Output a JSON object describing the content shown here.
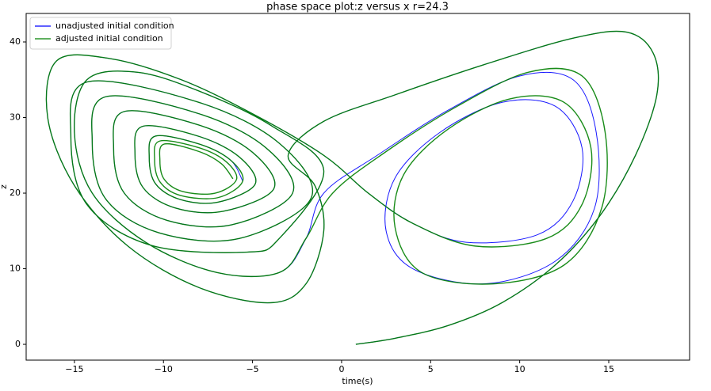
{
  "chart_data": {
    "type": "line",
    "title": "phase space plot:z versus x r=24.3",
    "xlabel": "time(s)",
    "ylabel": "z",
    "xlim": [
      -17.71,
      19.54
    ],
    "ylim": [
      -2.09,
      43.77
    ],
    "xticks": [
      {
        "value": -15,
        "label": "−15"
      },
      {
        "value": -10,
        "label": "−10"
      },
      {
        "value": -5,
        "label": "−5"
      },
      0,
      5,
      10,
      15
    ],
    "yticks": [
      0,
      10,
      20,
      30,
      40
    ],
    "grid": false,
    "legend": "upper left",
    "series": [
      {
        "name": "unadjusted initial condition",
        "color": "#0000ff",
        "x": [
          0.8,
          3,
          6,
          9,
          12,
          14.5,
          16.5,
          17.7,
          17.5,
          16,
          13,
          8,
          3,
          -1,
          -3,
          -1.5,
          -1,
          -2,
          -4,
          -8,
          -12,
          -15,
          -16.5,
          -16,
          -13,
          -9,
          -5,
          -1,
          1.5,
          4,
          7,
          11,
          13,
          13.5,
          12,
          9,
          5.5,
          3,
          2.5,
          4,
          8,
          12,
          14.2,
          14.3,
          13,
          10,
          6,
          2,
          -1,
          -2,
          -3.5,
          -7,
          -11,
          -14,
          -15,
          -14.3,
          -11.5,
          -8,
          -4,
          -1,
          -3.5,
          -5.3,
          -10.7,
          -14.3,
          -15.2,
          -14.3,
          -8,
          -3.5,
          -1.7,
          -5.75,
          -10.25,
          -13.25,
          -14,
          -13.25,
          -8,
          -4.25,
          -2.75,
          -6.2,
          -9.8,
          -12.2,
          -12.8,
          -12.2,
          -8,
          -5,
          -3.8,
          -6.65,
          -9.35,
          -11.15,
          -11.6,
          -11.15,
          -8,
          -5.75,
          -4.85,
          -6.95,
          -9.05,
          -10.45,
          -10.8,
          -10.45,
          -8,
          -6.25,
          -5.55
        ],
        "values": [
          0,
          0.8,
          2.5,
          5.5,
          10.5,
          17,
          25,
          33,
          38.5,
          41.3,
          40.5,
          37,
          33,
          29.5,
          25,
          21,
          15,
          8,
          5.5,
          7.5,
          13,
          21,
          30,
          37.5,
          37.8,
          35,
          30.5,
          25,
          20,
          16,
          13.5,
          14.5,
          19,
          26,
          31.5,
          32,
          28,
          22,
          15,
          10,
          8,
          11,
          18,
          28,
          35,
          35.5,
          31,
          25,
          20,
          14,
          9.5,
          9.5,
          13.5,
          20,
          28,
          35,
          36,
          33.5,
          29,
          23,
          14,
          12.2,
          13.1,
          18.5,
          27.5,
          34.7,
          32,
          26.6,
          19.4,
          14,
          14.75,
          19.25,
          26.75,
          32.75,
          30.5,
          26,
          20,
          15.8,
          16.4,
          20,
          26,
          30.8,
          29,
          25.4,
          20.6,
          17.6,
          18.05,
          20.75,
          25.25,
          28.85,
          27.5,
          24.8,
          21.2,
          18.8,
          19.15,
          21.25,
          24.75,
          27.55,
          26.5,
          24.4,
          21.6
        ]
      },
      {
        "name": "adjusted initial condition",
        "color": "#008000",
        "x": [
          0.8,
          3,
          6,
          9,
          12,
          14.5,
          16.5,
          17.7,
          17.5,
          16,
          13,
          8,
          3,
          -1,
          -3,
          -1.5,
          -1,
          -2,
          -4,
          -8,
          -12,
          -15,
          -16.5,
          -16,
          -13,
          -9,
          -5,
          -1,
          1.5,
          4,
          7.5,
          11.5,
          13.5,
          14,
          12.5,
          9.5,
          6,
          3.5,
          3,
          4.5,
          8.5,
          12.5,
          14.6,
          14.8,
          13.5,
          10.5,
          6.5,
          2.5,
          -0.5,
          -2,
          -3.5,
          -7,
          -11,
          -14,
          -15,
          -14.3,
          -11.5,
          -8,
          -4,
          -1,
          -3.5,
          -5.3,
          -10.7,
          -14.3,
          -15.2,
          -14.3,
          -8,
          -3.5,
          -1.7,
          -5.75,
          -10.25,
          -13.25,
          -14,
          -13.25,
          -8,
          -4.25,
          -2.75,
          -6.2,
          -9.8,
          -12.2,
          -12.8,
          -12.2,
          -8,
          -5,
          -3.8,
          -6.65,
          -9.35,
          -11.15,
          -11.6,
          -11.15,
          -8,
          -5.75,
          -4.85,
          -6.95,
          -9.05,
          -10.45,
          -10.8,
          -10.45,
          -8,
          -6.25,
          -5.55,
          -6.95,
          -9.05,
          -10.2,
          -10.5,
          -10.2,
          -8,
          -6.5,
          -5.9,
          -7.1,
          -8.9,
          -9.95,
          -10.2,
          -9.95,
          -8,
          -6.75,
          -6.1
        ],
        "values": [
          0,
          0.8,
          2.5,
          5.5,
          10.5,
          17,
          25,
          33,
          38.5,
          41.3,
          40.5,
          37,
          33,
          29.5,
          25,
          21,
          15,
          8,
          5.5,
          7.5,
          13,
          21,
          30,
          37.5,
          37.8,
          35,
          30.5,
          25,
          20,
          16,
          13,
          14,
          18.5,
          26,
          32,
          32.5,
          28.5,
          22.5,
          15.5,
          9.5,
          8,
          10.5,
          18,
          28,
          35.5,
          36,
          31.5,
          25.5,
          20,
          14,
          9.5,
          9.5,
          13.5,
          20,
          28,
          35,
          36,
          33.5,
          29,
          23,
          14,
          12.2,
          13.1,
          18.5,
          27.5,
          34.7,
          32,
          26.6,
          19.4,
          14,
          14.75,
          19.25,
          26.75,
          32.75,
          30.5,
          26,
          20,
          15.8,
          16.4,
          20,
          26,
          30.8,
          29,
          25.4,
          20.6,
          17.6,
          18.05,
          20.75,
          25.25,
          28.85,
          27.5,
          24.8,
          21.2,
          18.8,
          19.15,
          21.25,
          24.75,
          27.55,
          26.5,
          24.4,
          21.6,
          19.4,
          19.7,
          21.5,
          24.5,
          26.9,
          26,
          24.2,
          21.8,
          20,
          20.2,
          21.8,
          24.3,
          26.5,
          25.5,
          23.9,
          21.9
        ]
      }
    ]
  }
}
